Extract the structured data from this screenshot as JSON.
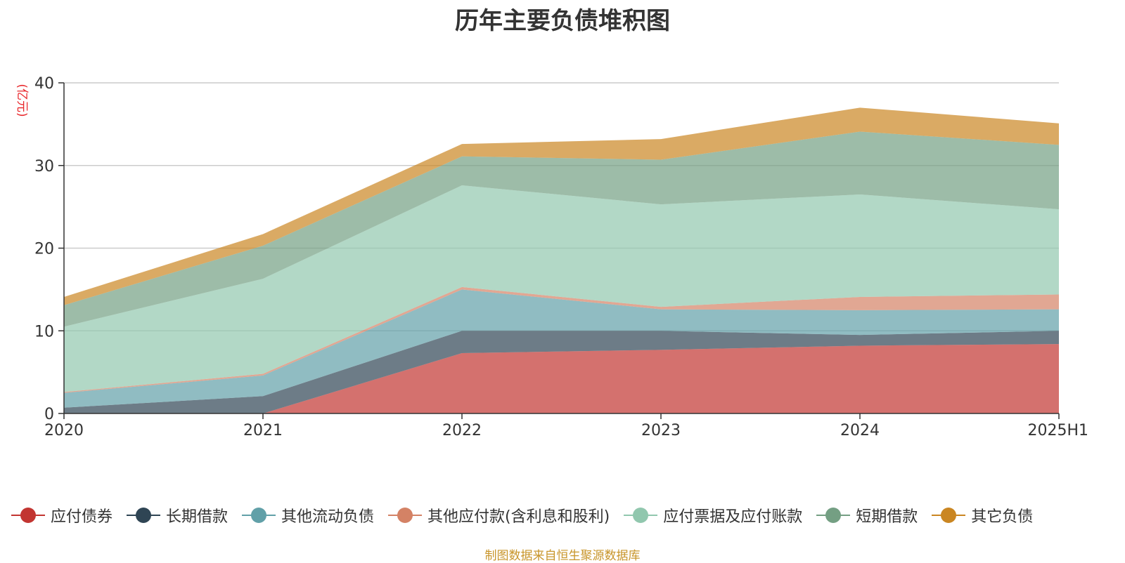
{
  "title": "历年主要负债堆积图",
  "source": "制图数据来自恒生聚源数据库",
  "chart_data": {
    "type": "area",
    "stacked": true,
    "unit_label": "(亿元)",
    "categories": [
      "2020",
      "2021",
      "2022",
      "2023",
      "2024",
      "2025H1"
    ],
    "ylim": [
      0,
      40
    ],
    "yticks": [
      0,
      10,
      20,
      30,
      40
    ],
    "grid": true,
    "legend_position": "bottom",
    "series": [
      {
        "name": "应付债券",
        "color": "#c23531",
        "values": [
          0,
          0,
          7.3,
          7.7,
          8.2,
          8.4
        ]
      },
      {
        "name": "长期借款",
        "color": "#2f4554",
        "values": [
          0.7,
          2.1,
          2.7,
          2.3,
          1.3,
          1.6
        ]
      },
      {
        "name": "其他流动负债",
        "color": "#61a0a8",
        "values": [
          1.8,
          2.5,
          5.0,
          2.6,
          3.0,
          2.6
        ]
      },
      {
        "name": "其他应付款(含利息和股利)",
        "color": "#d48265",
        "values": [
          0.1,
          0.2,
          0.3,
          0.3,
          1.6,
          1.8
        ]
      },
      {
        "name": "应付票据及应付账款",
        "color": "#91c7ae",
        "values": [
          7.9,
          11.5,
          12.3,
          12.4,
          12.4,
          10.3
        ]
      },
      {
        "name": "短期借款",
        "color": "#749f83",
        "values": [
          2.6,
          4.0,
          3.5,
          5.4,
          7.6,
          7.8
        ]
      },
      {
        "name": "其它负债",
        "color": "#ca8622",
        "values": [
          1.0,
          1.4,
          1.5,
          2.5,
          2.9,
          2.6
        ]
      }
    ]
  }
}
